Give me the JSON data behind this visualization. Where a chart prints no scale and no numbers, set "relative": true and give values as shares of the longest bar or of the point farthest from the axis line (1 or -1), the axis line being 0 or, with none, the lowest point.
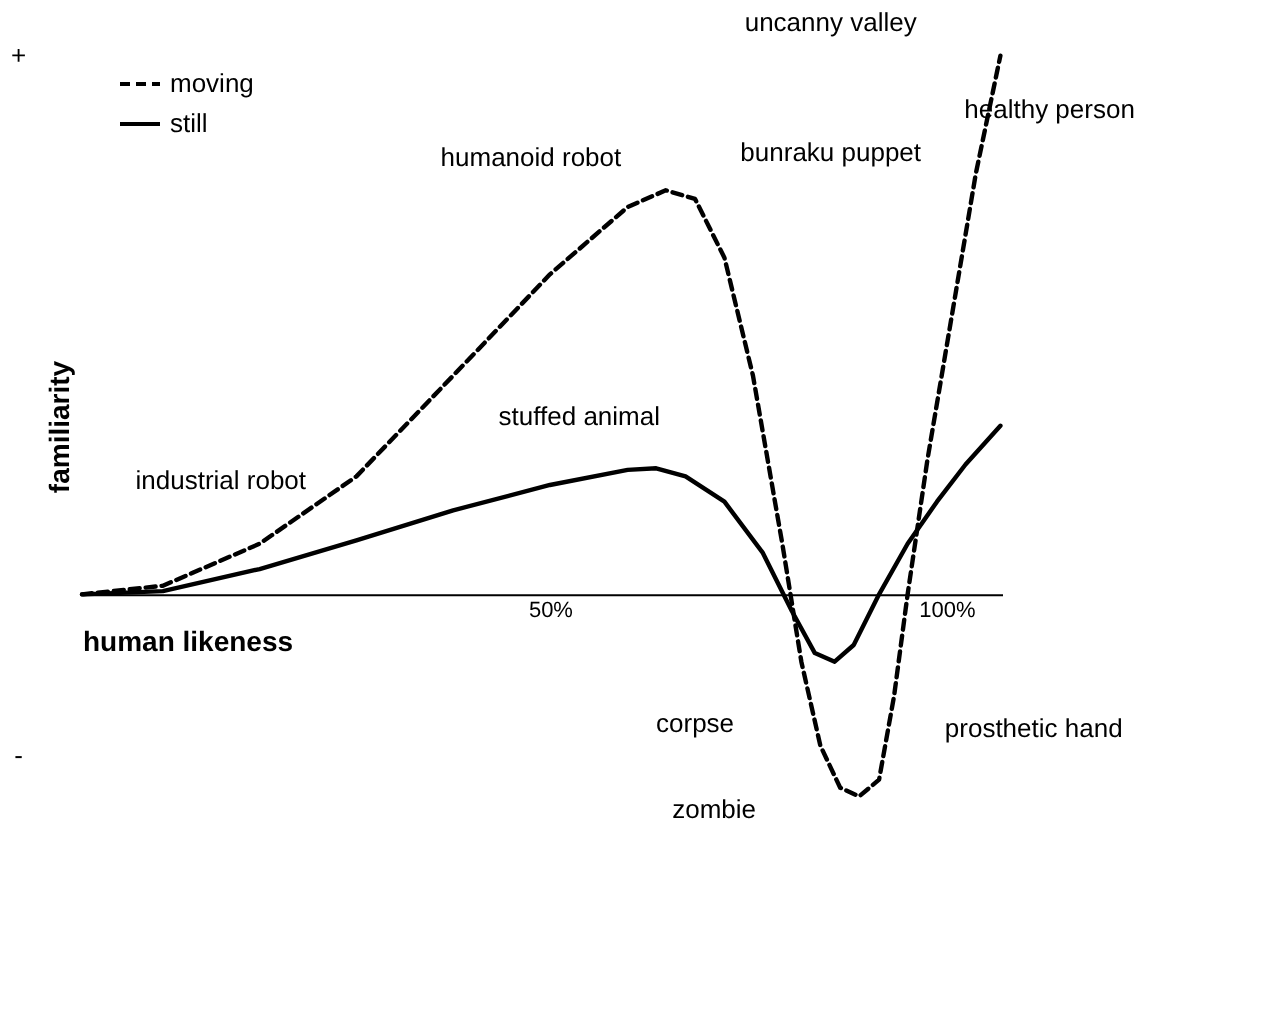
{
  "chart_data": {
    "type": "line",
    "relative": true,
    "xlabel": "human likeness",
    "ylabel": "familiarity",
    "xlim": [
      -9,
      107
    ],
    "xticks": [
      {
        "value": 50,
        "label": "50%"
      },
      {
        "value": 100,
        "label": "100%"
      }
    ],
    "grid": false,
    "legend": "top left",
    "series": [
      {
        "name": "moving",
        "color": "#000000",
        "line_style": "dashed",
        "x": [
          -9.0,
          1.2,
          13.4,
          25.6,
          37.8,
          50,
          59.8,
          64.6,
          68.3,
          72,
          75.6,
          79.3,
          81.7,
          84.1,
          86.6,
          89,
          91.5,
          93.4,
          95.1,
          97.6,
          101.2,
          103.7,
          106.8
        ],
        "values": [
          0,
          0.016,
          0.094,
          0.219,
          0.406,
          0.594,
          0.719,
          0.75,
          0.734,
          0.625,
          0.406,
          0.094,
          -0.125,
          -0.281,
          -0.359,
          -0.375,
          -0.344,
          -0.188,
          0,
          0.25,
          0.563,
          0.781,
          1.0
        ]
      },
      {
        "name": "still",
        "color": "#000000",
        "line_style": "solid",
        "x": [
          -9.0,
          1.2,
          13.4,
          25.6,
          37.8,
          50,
          59.8,
          63.4,
          67.1,
          72,
          76.8,
          80.5,
          83.4,
          85.9,
          88.3,
          91.5,
          95.1,
          98.8,
          102.4,
          106.8
        ],
        "values": [
          0,
          0.006,
          0.047,
          0.1,
          0.156,
          0.203,
          0.231,
          0.234,
          0.219,
          0.172,
          0.078,
          -0.031,
          -0.109,
          -0.125,
          -0.094,
          0,
          0.094,
          0.172,
          0.241,
          0.313
        ]
      }
    ],
    "annotations": [
      "uncanny valley",
      "bunraku puppet",
      "humanoid robot",
      "healthy person",
      "stuffed animal",
      "industrial robot",
      "corpse",
      "prosthetic hand",
      "zombie",
      "+",
      "-"
    ]
  }
}
